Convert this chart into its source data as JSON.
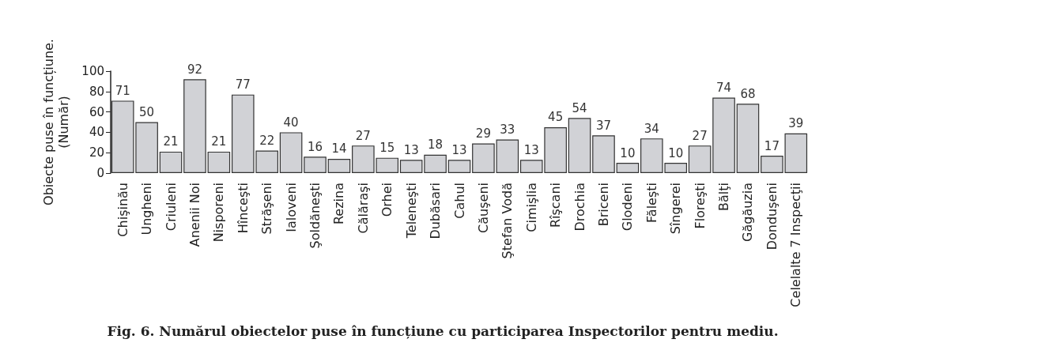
{
  "chart_data": {
    "type": "bar",
    "title": "Fig. 6. Numărul obiectelor puse în funcțiune cu participarea Inspectorilor pentru mediu.",
    "ylabel": "Obiecte puse în funcțiune.\n(Număr)",
    "categories": [
      "Chişinău",
      "Ungheni",
      "Criuleni",
      "Anenii Noi",
      "Nisporeni",
      "Hînceşti",
      "Străşeni",
      "Ialoveni",
      "Şoldăneşti",
      "Rezina",
      "Călăraşi",
      "Orhei",
      "Teleneşti",
      "Dubăsari",
      "Cahul",
      "Căuşeni",
      "Ştefan Vodă",
      "Cimişlia",
      "Rîşcani",
      "Drochia",
      "Briceni",
      "Glodeni",
      "Făleşti",
      "Sîngerei",
      "Floreşti",
      "Bălţi",
      "Găgăuzia",
      "Donduşeni",
      "Celelalte 7 Inspecţii"
    ],
    "values": [
      71,
      50,
      21,
      92,
      21,
      77,
      22,
      40,
      16,
      14,
      27,
      15,
      13,
      18,
      13,
      29,
      33,
      13,
      45,
      54,
      37,
      10,
      34,
      10,
      27,
      74,
      68,
      17,
      39
    ],
    "color": "#d1d2d6",
    "ylim": [
      0,
      100
    ],
    "yticks": [
      0,
      20,
      40,
      60,
      80,
      100
    ],
    "grid": false,
    "data_labels": true
  }
}
